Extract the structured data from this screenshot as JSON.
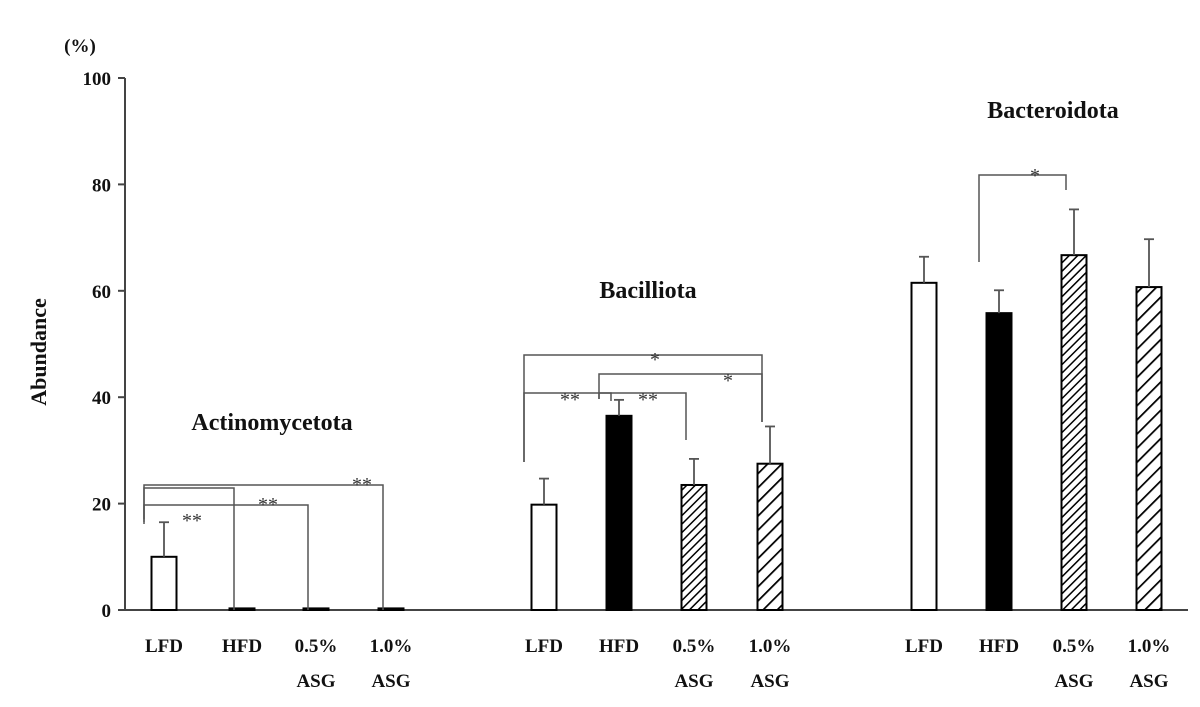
{
  "chart_data": {
    "type": "bar",
    "ylabel": "Abundance",
    "yunit": "(%)",
    "ylim": [
      0,
      100
    ],
    "yticks": [
      0,
      20,
      40,
      60,
      80,
      100
    ],
    "groups": [
      {
        "title": "Actinomycetota",
        "categories": [
          "LFD",
          "HFD",
          "0.5%\nASG",
          "1.0%\nASG"
        ],
        "values": [
          10.0,
          0.3,
          0.3,
          0.3
        ],
        "errors": [
          6.5,
          0,
          0,
          0
        ],
        "significance": [
          {
            "from": 0,
            "to": 1,
            "label": "**"
          },
          {
            "from": 0,
            "to": 2,
            "label": "**"
          },
          {
            "from": 0,
            "to": 3,
            "label": "**"
          }
        ]
      },
      {
        "title": "Bacilliota",
        "categories": [
          "LFD",
          "HFD",
          "0.5%\nASG",
          "1.0%\nASG"
        ],
        "values": [
          19.8,
          36.5,
          23.5,
          27.5
        ],
        "errors": [
          4.9,
          3.0,
          4.9,
          7.0
        ],
        "significance": [
          {
            "from": 0,
            "to": 1,
            "label": "**"
          },
          {
            "from": 1,
            "to": 2,
            "label": "**"
          },
          {
            "from": 1,
            "to": 3,
            "label": "*"
          },
          {
            "from": 0,
            "to": 3,
            "label": "*"
          }
        ]
      },
      {
        "title": "Bacteroidota",
        "categories": [
          "LFD",
          "HFD",
          "0.5%\nASG",
          "1.0%\nASG"
        ],
        "values": [
          61.5,
          55.8,
          66.7,
          60.7
        ],
        "errors": [
          4.9,
          4.3,
          8.6,
          9.0
        ],
        "significance": [
          {
            "from": 1,
            "to": 2,
            "label": "*"
          }
        ]
      }
    ],
    "bar_styles": [
      "open",
      "filled",
      "dense-hatch",
      "wide-hatch"
    ],
    "colors": {
      "stroke": "#000000",
      "fill": "#000000",
      "axis": "#444444",
      "bracket": "#555555"
    }
  }
}
